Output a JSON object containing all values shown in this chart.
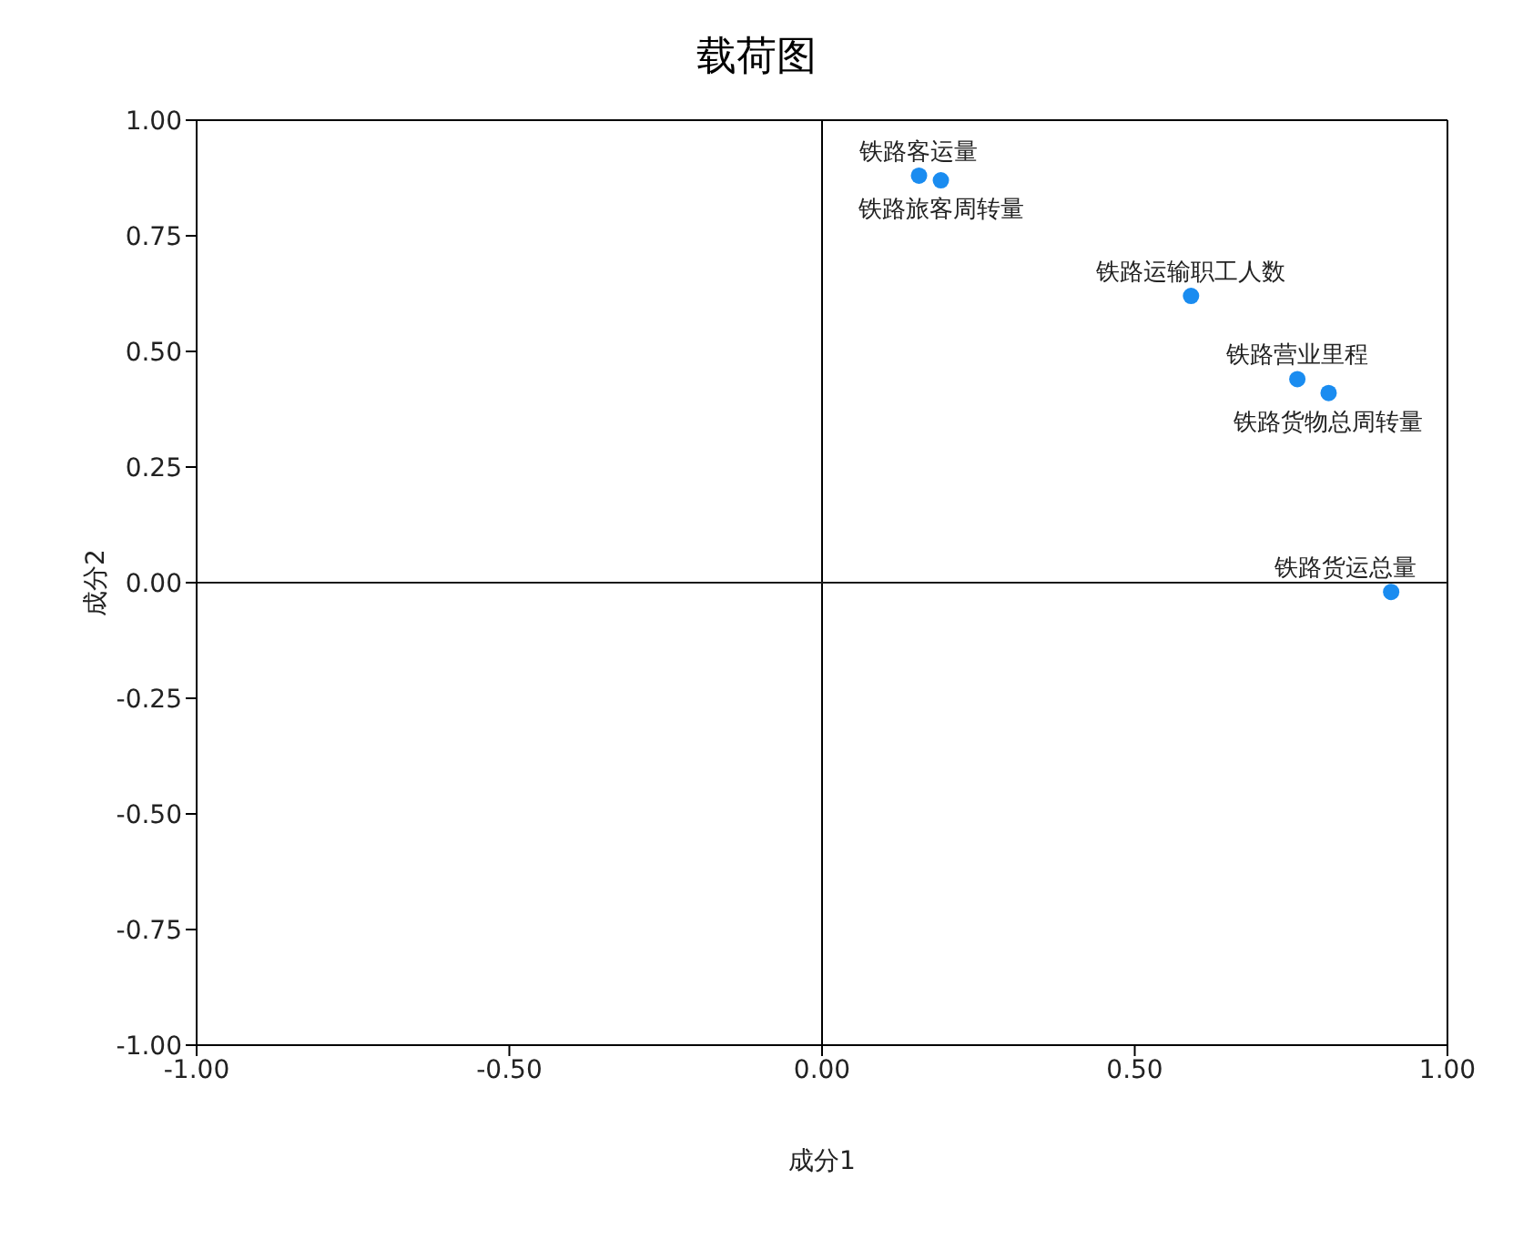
{
  "chart_data": {
    "type": "scatter",
    "title": "载荷图",
    "xlabel": "成分1",
    "ylabel": "成分2",
    "x": [
      0.155,
      0.19,
      0.59,
      0.76,
      0.81,
      0.91
    ],
    "series": [
      {
        "color": "#1a8cf0",
        "values": [
          0.88,
          0.87,
          0.62,
          0.44,
          0.41,
          -0.02
        ]
      }
    ],
    "annotations": [
      {
        "text": "铁路客运量",
        "x": 0.155,
        "y": 0.88
      },
      {
        "text": "铁路旅客周转量",
        "x": 0.19,
        "y": 0.87
      },
      {
        "text": "铁路运输职工人数",
        "x": 0.59,
        "y": 0.62
      },
      {
        "text": "铁路营业里程",
        "x": 0.76,
        "y": 0.44
      },
      {
        "text": "铁路货物总周转量",
        "x": 0.81,
        "y": 0.41
      },
      {
        "text": "铁路货运总量",
        "x": 0.91,
        "y": -0.02
      }
    ],
    "xlim": [
      -1,
      1
    ],
    "ylim": [
      -1,
      1
    ],
    "xticks": [
      {
        "value": -1,
        "label": "-1.00"
      },
      {
        "value": -0.5,
        "label": "-0.50"
      },
      {
        "value": 0,
        "label": "0.00"
      },
      {
        "value": 0.5,
        "label": "0.50"
      },
      {
        "value": 1,
        "label": "1.00"
      }
    ],
    "yticks": [
      {
        "value": -1,
        "label": "-1.00"
      },
      {
        "value": -0.75,
        "label": "-0.75"
      },
      {
        "value": -0.5,
        "label": "-0.50"
      },
      {
        "value": -0.25,
        "label": "-0.25"
      },
      {
        "value": 0,
        "label": "0.00"
      },
      {
        "value": 0.25,
        "label": "0.25"
      },
      {
        "value": 0.5,
        "label": "0.50"
      },
      {
        "value": 0.75,
        "label": "0.75"
      },
      {
        "value": 1,
        "label": "1.00"
      }
    ],
    "ref_lines": [
      {
        "axis": "x",
        "value": 0,
        "color": "#000000"
      },
      {
        "axis": "y",
        "value": 0,
        "color": "#1a1a1a"
      }
    ],
    "marker": "circle",
    "grid": false,
    "legend": false
  }
}
